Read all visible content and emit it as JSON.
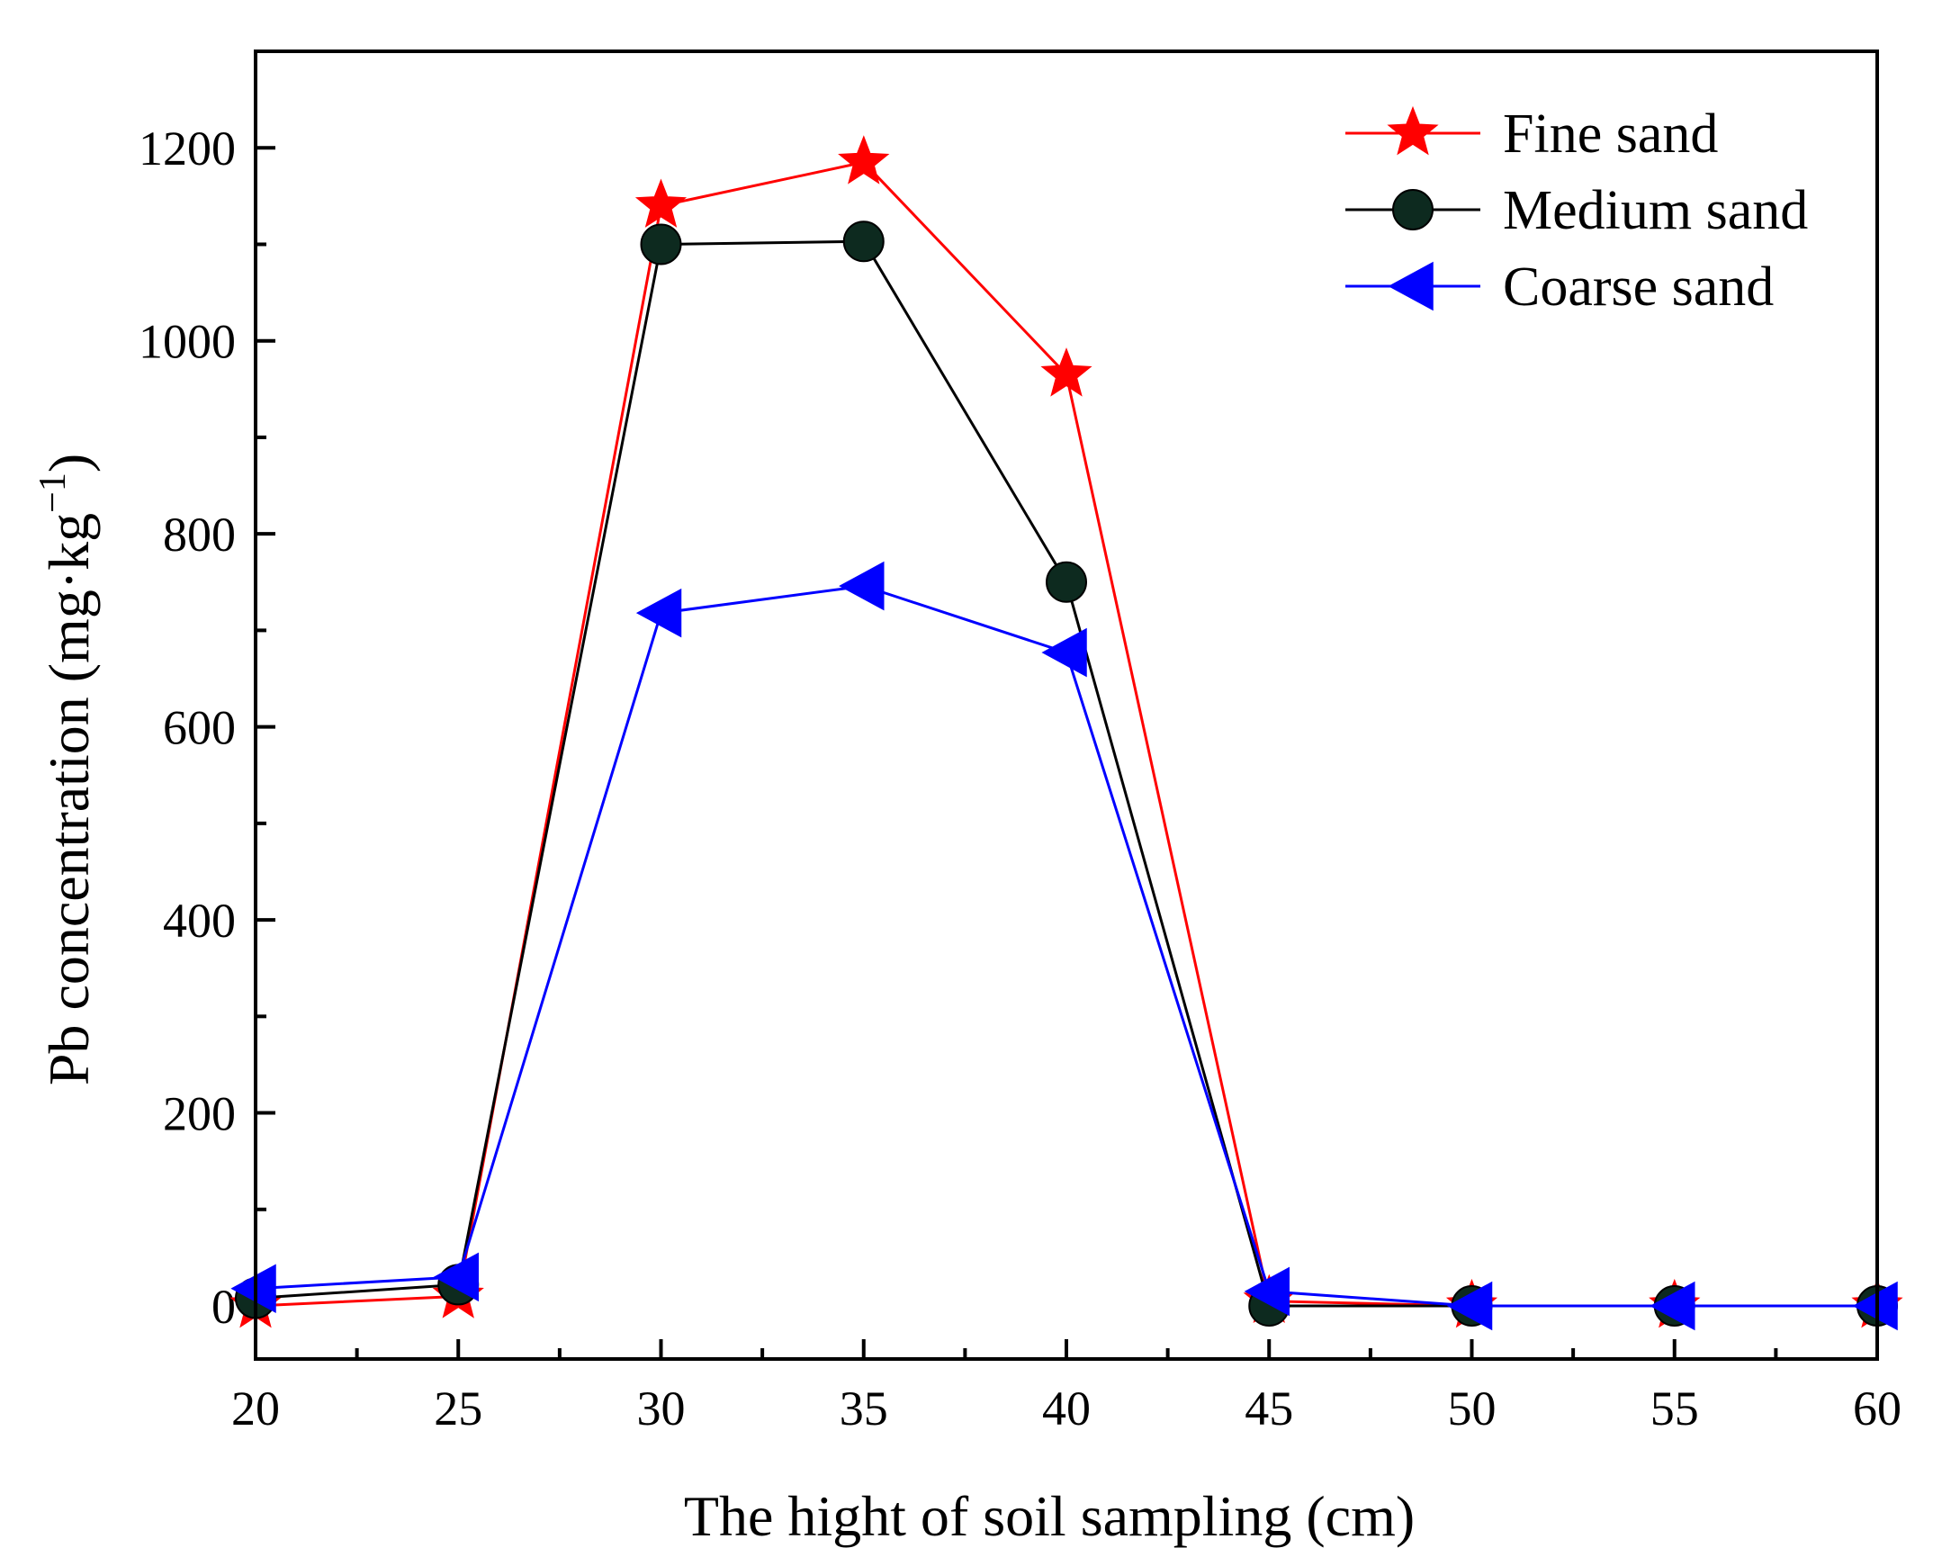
{
  "chart_data": {
    "type": "line",
    "xlabel": "The hight of soil sampling (cm)",
    "ylabel_main": "Pb concentration (mg·kg",
    "ylabel_sup": "−1",
    "ylabel_close": ")",
    "xlim": [
      20,
      60
    ],
    "ylim": [
      -55,
      1300
    ],
    "x_ticks": [
      20,
      25,
      30,
      35,
      40,
      45,
      50,
      55,
      60
    ],
    "x_tick_labels": [
      "20",
      "25",
      "30",
      "35",
      "40",
      "45",
      "50",
      "55",
      "60"
    ],
    "y_ticks": [
      0,
      200,
      400,
      600,
      800,
      1000,
      1200
    ],
    "y_tick_labels": [
      "0",
      "200",
      "400",
      "600",
      "800",
      "1000",
      "1200"
    ],
    "x": [
      20,
      25,
      30,
      35,
      40,
      45,
      50,
      55,
      60
    ],
    "series": [
      {
        "name": "Fine sand",
        "color": "#ff0000",
        "marker": "star",
        "values": [
          0,
          10,
          1140,
          1185,
          965,
          5,
          0,
          0,
          0
        ]
      },
      {
        "name": "Medium sand",
        "color": "#000000",
        "fill": "#0d2a1f",
        "marker": "circle",
        "values": [
          8,
          22,
          1100,
          1103,
          750,
          0,
          0,
          0,
          0
        ]
      },
      {
        "name": "Coarse sand",
        "color": "#0000ff",
        "marker": "triangle-left",
        "values": [
          18,
          30,
          718,
          746,
          677,
          15,
          0,
          0,
          0
        ]
      }
    ],
    "legend_position": "top-right"
  }
}
